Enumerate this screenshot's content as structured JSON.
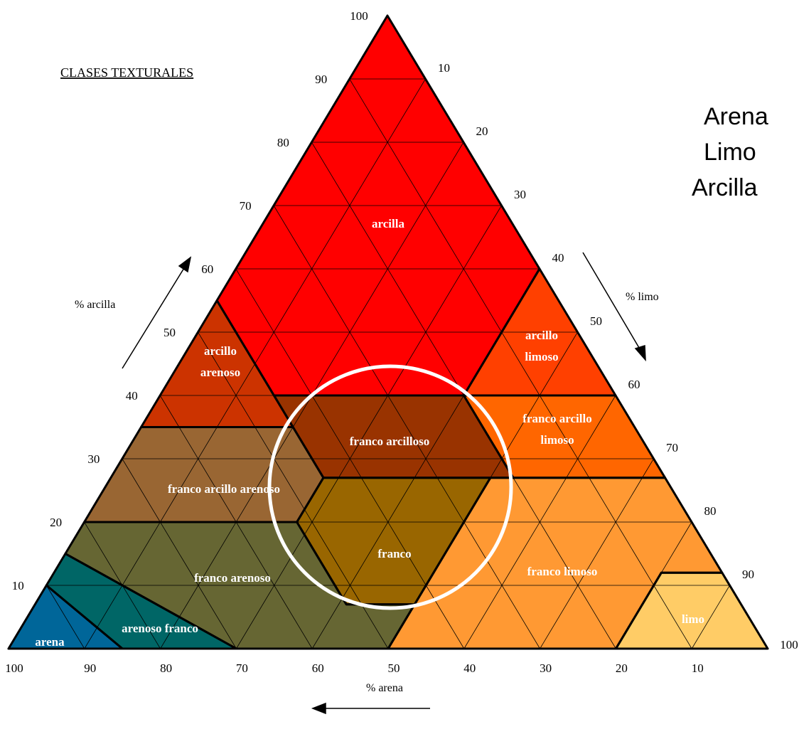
{
  "title": "CLASES TEXTURALES",
  "axes": {
    "clay_label": "% arcilla",
    "silt_label": "% limo",
    "sand_label": "% arena",
    "clay_ticks": [
      10,
      20,
      30,
      40,
      50,
      60,
      70,
      80,
      90,
      100
    ],
    "silt_ticks": [
      10,
      20,
      30,
      40,
      50,
      60,
      70,
      80,
      90,
      100
    ],
    "sand_ticks": [
      100,
      90,
      80,
      70,
      60,
      50,
      40,
      30,
      20,
      10
    ]
  },
  "regions": [
    {
      "lines": [
        "arcilla"
      ]
    },
    {
      "lines": [
        "arcillo",
        "limoso"
      ]
    },
    {
      "lines": [
        "arcillo",
        "arenoso"
      ]
    },
    {
      "lines": [
        "franco arcillo",
        "limoso"
      ]
    },
    {
      "lines": [
        "franco arcilloso"
      ]
    },
    {
      "lines": [
        "franco arcillo arenoso"
      ]
    },
    {
      "lines": [
        "franco"
      ]
    },
    {
      "lines": [
        "franco limoso"
      ]
    },
    {
      "lines": [
        "limo"
      ]
    },
    {
      "lines": [
        "franco arenoso"
      ]
    },
    {
      "lines": [
        "arenoso franco"
      ]
    },
    {
      "lines": [
        "arena"
      ]
    }
  ],
  "legend": [
    "Arena",
    "Limo",
    "Arcilla"
  ]
}
